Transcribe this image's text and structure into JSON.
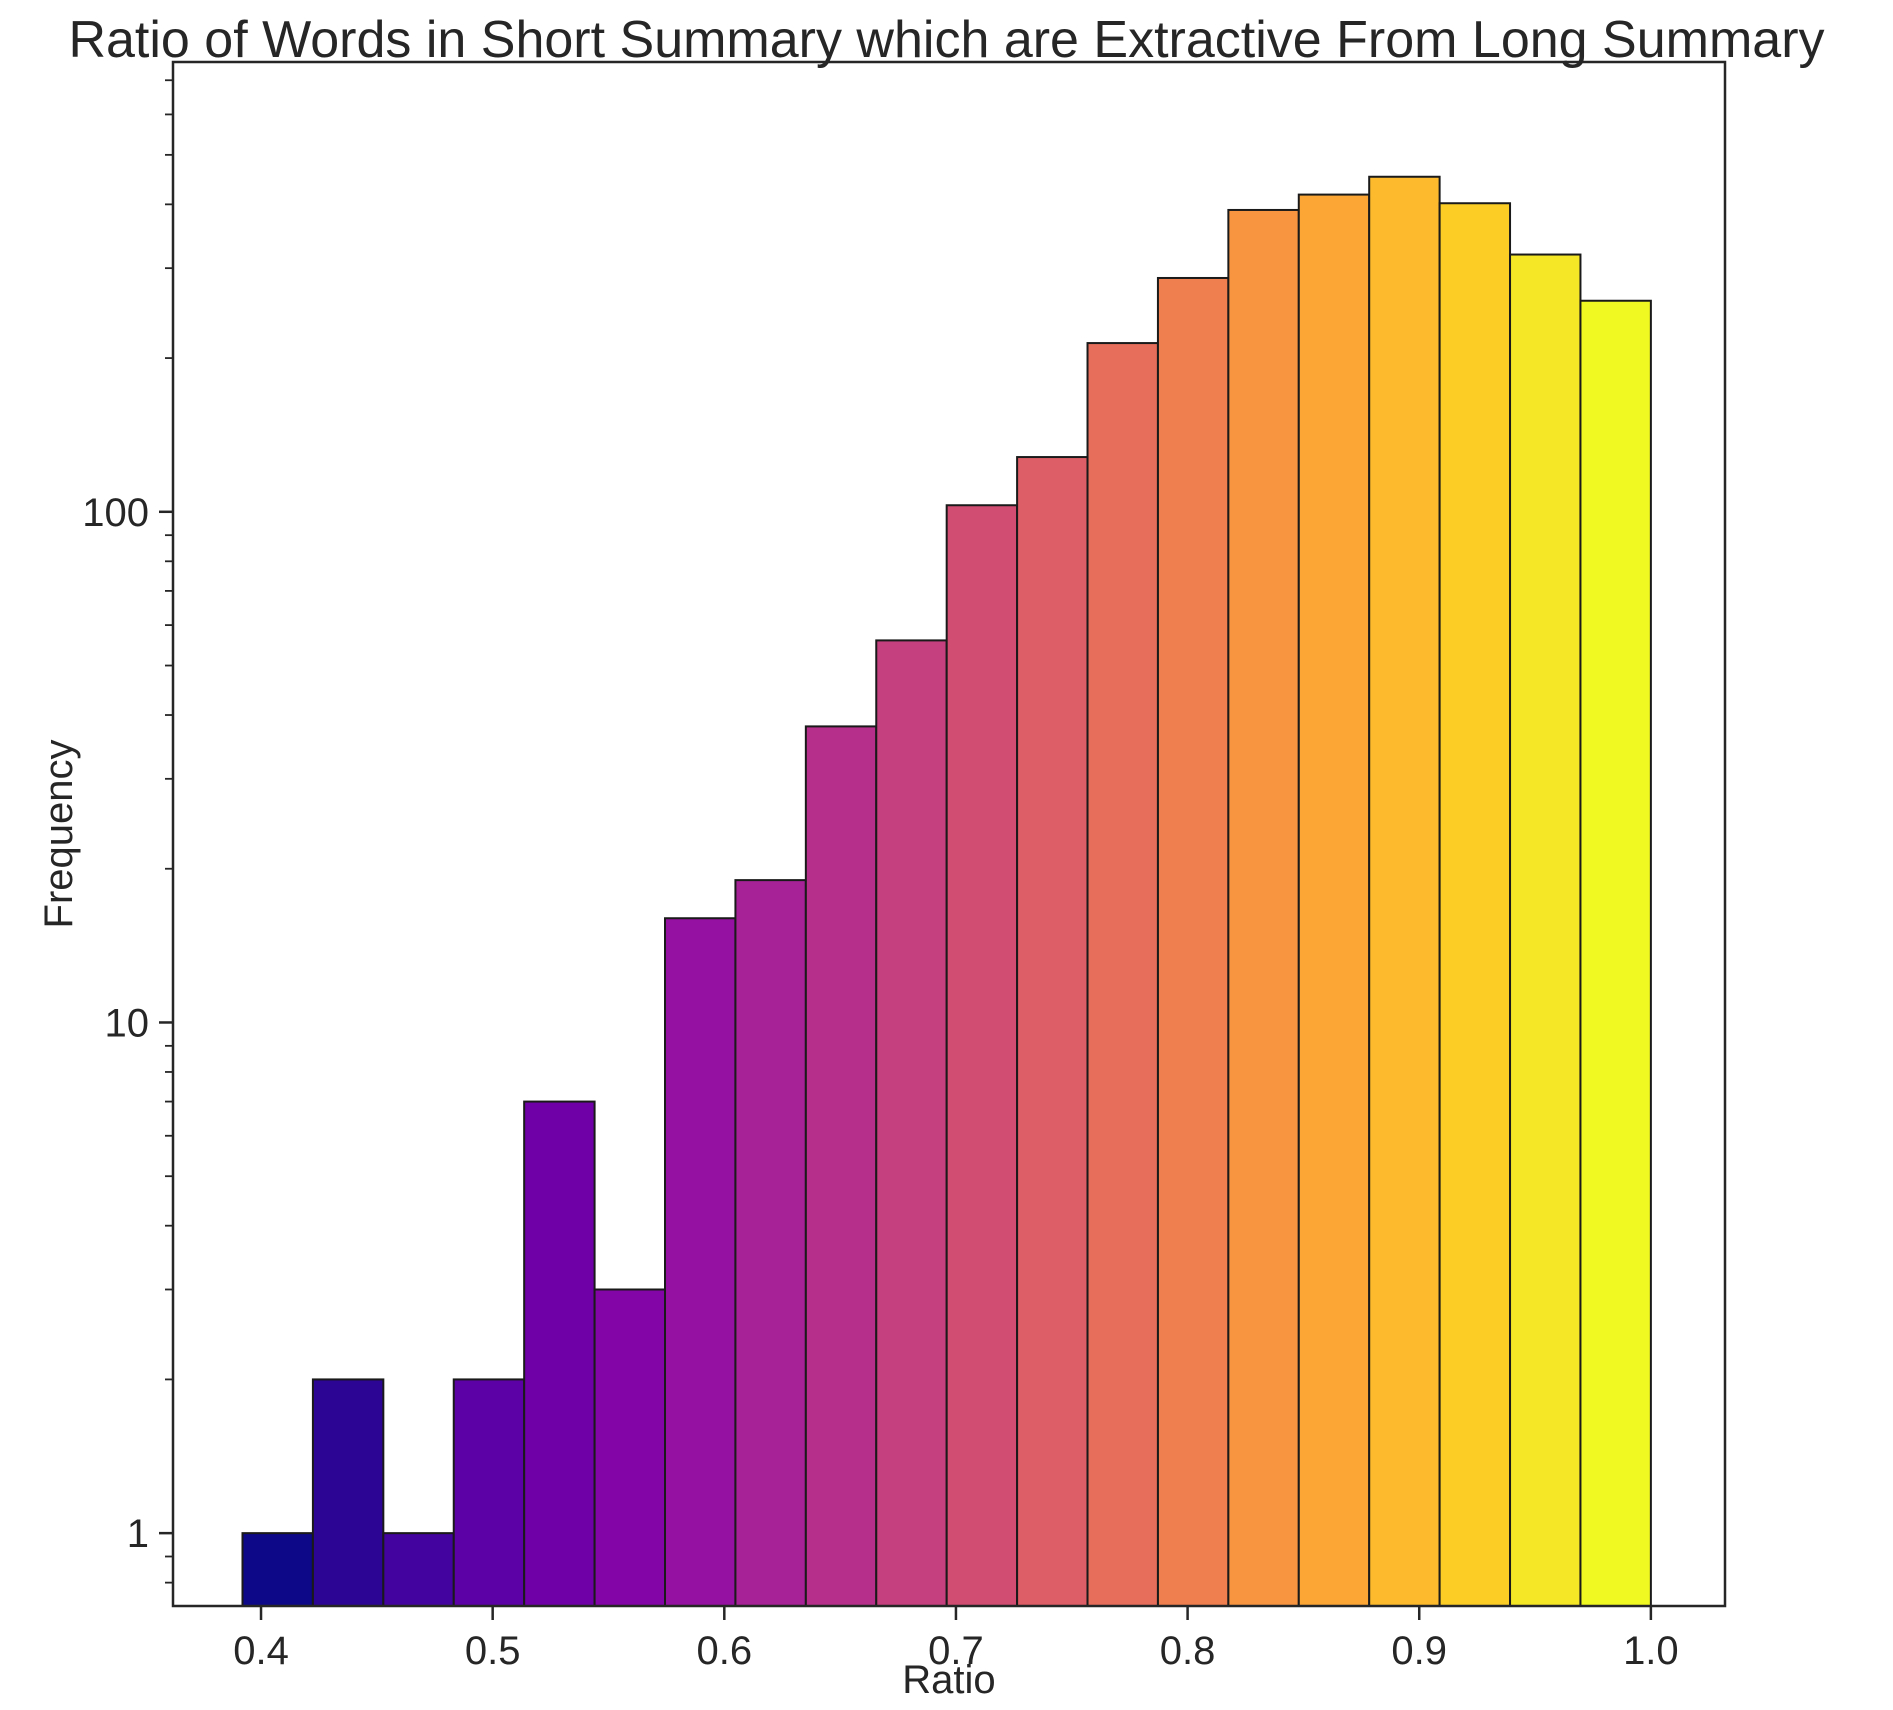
{
  "chart_data": {
    "type": "bar",
    "title": "Ratio of Words in Short Summary which are Extractive From Long Summary",
    "xlabel": "Ratio",
    "ylabel": "Frequency",
    "yscale": "log",
    "xlim": [
      0.362,
      1.032
    ],
    "ylim": [
      0.72,
      760
    ],
    "x_ticks": [
      0.4,
      0.5,
      0.6,
      0.7,
      0.8,
      0.9,
      1.0
    ],
    "x_tick_labels": [
      "0.4",
      "0.5",
      "0.6",
      "0.7",
      "0.8",
      "0.9",
      "1.0"
    ],
    "y_ticks": [
      1,
      10,
      100
    ],
    "y_tick_labels": [
      "1",
      "10",
      "100"
    ],
    "bin_edges": [
      0.392,
      0.4224,
      0.4528,
      0.4832,
      0.5136,
      0.544,
      0.5744,
      0.6048,
      0.6352,
      0.6656,
      0.696,
      0.7264,
      0.7568,
      0.7872,
      0.8176,
      0.848,
      0.8784,
      0.9088,
      0.9392,
      0.9696,
      1.0
    ],
    "values": [
      1,
      2,
      1,
      2,
      7,
      3,
      16,
      19,
      38,
      56,
      103,
      128,
      214,
      287,
      390,
      418,
      453,
      402,
      319,
      259
    ],
    "colors": [
      "#0d0887",
      "#2c0594",
      "#43039e",
      "#5b01a5",
      "#6f00a8",
      "#8405a7",
      "#9511a1",
      "#a72197",
      "#b6308b",
      "#c5407e",
      "#d14e72",
      "#dd5e66",
      "#e76e5b",
      "#f07f4f",
      "#f89540",
      "#fca636",
      "#fcba2c",
      "#fcce25",
      "#f5e626",
      "#f0f921"
    ],
    "grid": false,
    "legend": "none"
  }
}
